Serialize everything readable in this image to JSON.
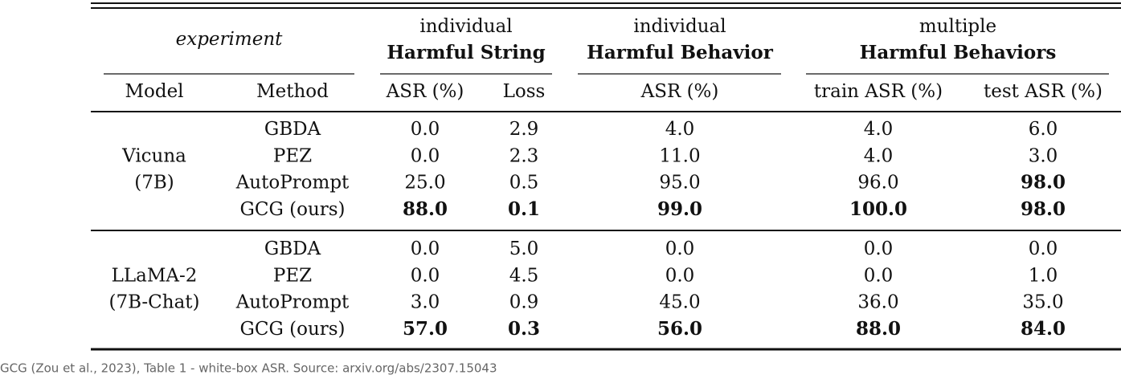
{
  "header": {
    "corner": "experiment",
    "groups": [
      {
        "top": "individual",
        "title": "Harmful String"
      },
      {
        "top": "individual",
        "title": "Harmful Behavior"
      },
      {
        "top": "multiple",
        "title": "Harmful Behaviors"
      }
    ],
    "columns": [
      "Model",
      "Method",
      "ASR (%)",
      "Loss",
      "ASR (%)",
      "train ASR (%)",
      "test ASR (%)"
    ]
  },
  "table": {
    "row_groups": [
      {
        "model": [
          "Vicuna",
          "(7B)"
        ],
        "rows": [
          {
            "method": "GBDA",
            "cells": [
              "0.0",
              "2.9",
              "4.0",
              "4.0",
              "6.0"
            ],
            "bold": []
          },
          {
            "method": "PEZ",
            "cells": [
              "0.0",
              "2.3",
              "11.0",
              "4.0",
              "3.0"
            ],
            "bold": []
          },
          {
            "method": "AutoPrompt",
            "cells": [
              "25.0",
              "0.5",
              "95.0",
              "96.0",
              "98.0"
            ],
            "bold": [
              4
            ]
          },
          {
            "method": "GCG (ours)",
            "cells": [
              "88.0",
              "0.1",
              "99.0",
              "100.0",
              "98.0"
            ],
            "bold": [
              0,
              1,
              2,
              3,
              4
            ]
          }
        ]
      },
      {
        "model": [
          "LLaMA-2",
          "(7B-Chat)"
        ],
        "rows": [
          {
            "method": "GBDA",
            "cells": [
              "0.0",
              "5.0",
              "0.0",
              "0.0",
              "0.0"
            ],
            "bold": []
          },
          {
            "method": "PEZ",
            "cells": [
              "0.0",
              "4.5",
              "0.0",
              "0.0",
              "1.0"
            ],
            "bold": []
          },
          {
            "method": "AutoPrompt",
            "cells": [
              "3.0",
              "0.9",
              "45.0",
              "36.0",
              "35.0"
            ],
            "bold": []
          },
          {
            "method": "GCG (ours)",
            "cells": [
              "57.0",
              "0.3",
              "56.0",
              "88.0",
              "84.0"
            ],
            "bold": [
              0,
              1,
              2,
              3,
              4
            ]
          }
        ]
      }
    ]
  },
  "caption": "GCG (Zou et al., 2023), Table 1 - white-box ASR.  Source: arxiv.org/abs/2307.15043"
}
